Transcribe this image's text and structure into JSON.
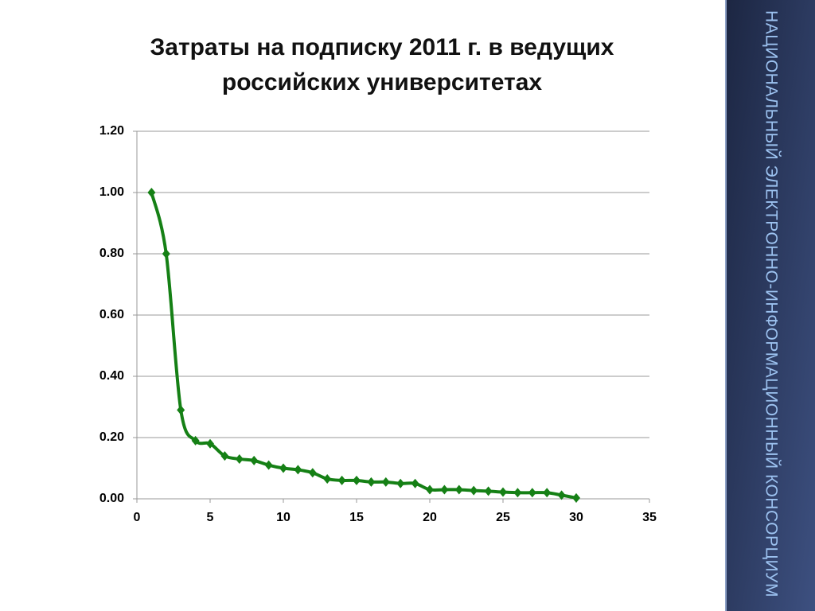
{
  "chart_data": {
    "type": "line",
    "title": "Затраты на подписку 2011 г. в ведущих российских университетах",
    "x": [
      1,
      2,
      3,
      4,
      5,
      6,
      7,
      8,
      9,
      10,
      11,
      12,
      13,
      14,
      15,
      16,
      17,
      18,
      19,
      20,
      21,
      22,
      23,
      24,
      25,
      26,
      27,
      28,
      29,
      30
    ],
    "series": [
      {
        "name": null,
        "color": "#158015",
        "values": [
          1.0,
          0.8,
          0.29,
          0.19,
          0.18,
          0.14,
          0.13,
          0.125,
          0.11,
          0.1,
          0.095,
          0.085,
          0.065,
          0.06,
          0.06,
          0.055,
          0.055,
          0.05,
          0.05,
          0.03,
          0.03,
          0.03,
          0.027,
          0.025,
          0.022,
          0.02,
          0.02,
          0.02,
          0.012,
          0.003
        ]
      }
    ],
    "xlim": [
      0,
      35
    ],
    "xticks": [
      0,
      5,
      10,
      15,
      20,
      25,
      30,
      35
    ],
    "ylim": [
      0,
      1.2
    ],
    "yticks": [
      {
        "value": 0,
        "label": "0.00"
      },
      {
        "value": 0.2,
        "label": "0.20"
      },
      {
        "value": 0.4,
        "label": "0.40"
      },
      {
        "value": 0.6,
        "label": "0.60"
      },
      {
        "value": 0.8,
        "label": "0.80"
      },
      {
        "value": 1,
        "label": "1.00"
      },
      {
        "value": 1.2,
        "label": "1.20"
      }
    ],
    "grid": true
  },
  "slide": {
    "side_label": "НАЦИОНАЛЬНЫЙ ЭЛЕКТРОННО-ИНФОРМАЦИОННЫЙ КОНСОРЦИУМ"
  }
}
